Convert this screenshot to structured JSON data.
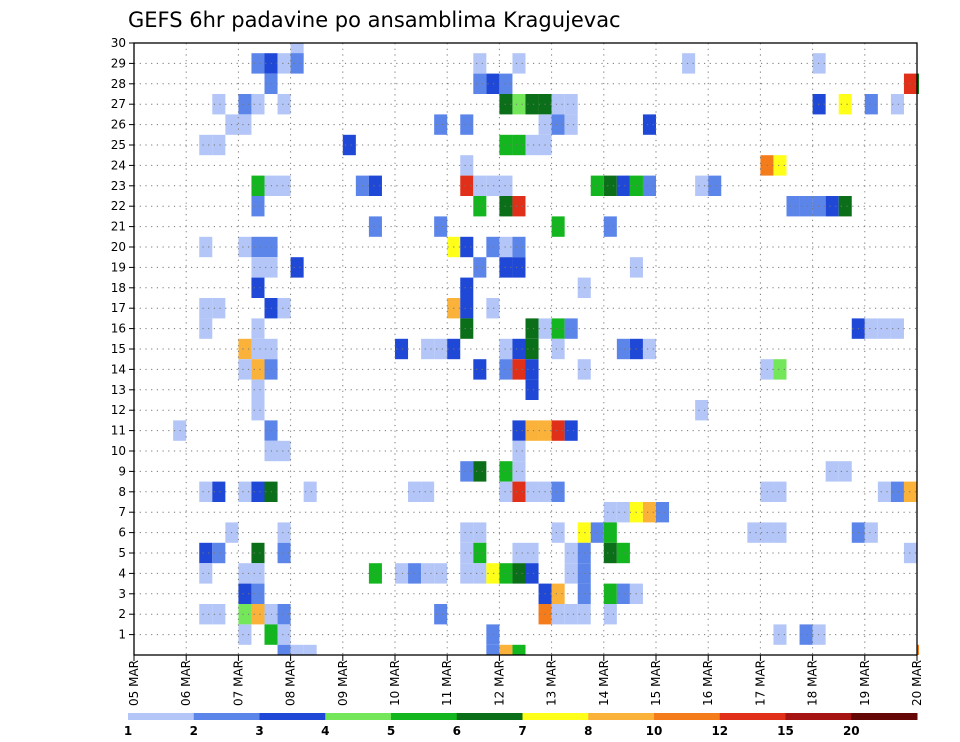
{
  "chart_data": {
    "type": "heatmap",
    "title": "GEFS 6hr padavine po ansamblima Kragujevac",
    "x_ticks": [
      "05 MAR",
      "06 MAR",
      "07 MAR",
      "08 MAR",
      "09 MAR",
      "10 MAR",
      "11 MAR",
      "12 MAR",
      "13 MAR",
      "14 MAR",
      "15 MAR",
      "16 MAR",
      "17 MAR",
      "18 MAR",
      "19 MAR",
      "20 MAR"
    ],
    "x_steps_per_day": 4,
    "x_range_steps": [
      0,
      60
    ],
    "y_ticks": [
      1,
      2,
      3,
      4,
      5,
      6,
      7,
      8,
      9,
      10,
      11,
      12,
      13,
      14,
      15,
      16,
      17,
      18,
      19,
      20,
      21,
      22,
      23,
      24,
      25,
      26,
      27,
      28,
      29,
      30
    ],
    "y_range": [
      0,
      30
    ],
    "grid": true,
    "colorbar": {
      "position": "bottom",
      "labels": [
        "1",
        "2",
        "3",
        "4",
        "5",
        "6",
        "7",
        "8",
        "10",
        "12",
        "15",
        "20"
      ],
      "colors": [
        "#b3c6f7",
        "#5c85ea",
        "#1f48d6",
        "#73e65a",
        "#13b61e",
        "#0b6e18",
        "#ffff1a",
        "#fbb23a",
        "#f57c1a",
        "#e0301a",
        "#a51313",
        "#650707"
      ]
    },
    "cell_encoding": "[time_step, member, color_class] where color_class indexes colorbar.colors",
    "cells": [
      [
        12,
        30,
        0
      ],
      [
        9,
        29,
        1
      ],
      [
        10,
        29,
        2
      ],
      [
        11,
        29,
        0
      ],
      [
        12,
        29,
        1
      ],
      [
        26,
        29,
        0
      ],
      [
        29,
        29,
        0
      ],
      [
        42,
        29,
        0
      ],
      [
        52,
        29,
        0
      ],
      [
        10,
        28,
        1
      ],
      [
        26,
        28,
        1
      ],
      [
        27,
        28,
        2
      ],
      [
        28,
        28,
        1
      ],
      [
        59,
        28,
        9
      ],
      [
        60,
        28,
        5
      ],
      [
        6,
        27,
        0
      ],
      [
        8,
        27,
        1
      ],
      [
        9,
        27,
        0
      ],
      [
        11,
        27,
        0
      ],
      [
        28,
        27,
        5
      ],
      [
        29,
        27,
        3
      ],
      [
        30,
        27,
        5
      ],
      [
        31,
        27,
        5
      ],
      [
        32,
        27,
        0
      ],
      [
        33,
        27,
        0
      ],
      [
        52,
        27,
        2
      ],
      [
        54,
        27,
        6
      ],
      [
        56,
        27,
        1
      ],
      [
        58,
        27,
        0
      ],
      [
        7,
        26,
        0
      ],
      [
        8,
        26,
        0
      ],
      [
        23,
        26,
        1
      ],
      [
        25,
        26,
        1
      ],
      [
        31,
        26,
        0
      ],
      [
        32,
        26,
        1
      ],
      [
        33,
        26,
        0
      ],
      [
        39,
        26,
        2
      ],
      [
        5,
        25,
        0
      ],
      [
        6,
        25,
        0
      ],
      [
        16,
        25,
        2
      ],
      [
        28,
        25,
        4
      ],
      [
        29,
        25,
        4
      ],
      [
        30,
        25,
        0
      ],
      [
        31,
        25,
        0
      ],
      [
        25,
        24,
        0
      ],
      [
        48,
        24,
        8
      ],
      [
        49,
        24,
        6
      ],
      [
        9,
        23,
        4
      ],
      [
        10,
        23,
        0
      ],
      [
        11,
        23,
        0
      ],
      [
        17,
        23,
        1
      ],
      [
        18,
        23,
        2
      ],
      [
        25,
        23,
        9
      ],
      [
        26,
        23,
        0
      ],
      [
        27,
        23,
        0
      ],
      [
        28,
        23,
        0
      ],
      [
        35,
        23,
        4
      ],
      [
        36,
        23,
        5
      ],
      [
        37,
        23,
        2
      ],
      [
        38,
        23,
        4
      ],
      [
        39,
        23,
        1
      ],
      [
        43,
        23,
        0
      ],
      [
        44,
        23,
        1
      ],
      [
        9,
        22,
        1
      ],
      [
        26,
        22,
        4
      ],
      [
        28,
        22,
        5
      ],
      [
        29,
        22,
        9
      ],
      [
        50,
        22,
        1
      ],
      [
        51,
        22,
        1
      ],
      [
        52,
        22,
        1
      ],
      [
        53,
        22,
        2
      ],
      [
        54,
        22,
        5
      ],
      [
        18,
        21,
        1
      ],
      [
        23,
        21,
        1
      ],
      [
        32,
        21,
        4
      ],
      [
        36,
        21,
        1
      ],
      [
        5,
        20,
        0
      ],
      [
        8,
        20,
        0
      ],
      [
        9,
        20,
        1
      ],
      [
        10,
        20,
        1
      ],
      [
        24,
        20,
        6
      ],
      [
        25,
        20,
        2
      ],
      [
        27,
        20,
        1
      ],
      [
        28,
        20,
        0
      ],
      [
        29,
        20,
        1
      ],
      [
        9,
        19,
        0
      ],
      [
        10,
        19,
        0
      ],
      [
        12,
        19,
        2
      ],
      [
        26,
        19,
        1
      ],
      [
        28,
        19,
        2
      ],
      [
        29,
        19,
        2
      ],
      [
        38,
        19,
        0
      ],
      [
        9,
        18,
        2
      ],
      [
        25,
        18,
        2
      ],
      [
        34,
        18,
        0
      ],
      [
        5,
        17,
        0
      ],
      [
        6,
        17,
        0
      ],
      [
        10,
        17,
        2
      ],
      [
        11,
        17,
        0
      ],
      [
        24,
        17,
        7
      ],
      [
        25,
        17,
        2
      ],
      [
        27,
        17,
        0
      ],
      [
        5,
        16,
        0
      ],
      [
        9,
        16,
        0
      ],
      [
        25,
        16,
        5
      ],
      [
        30,
        16,
        5
      ],
      [
        31,
        16,
        0
      ],
      [
        32,
        16,
        4
      ],
      [
        33,
        16,
        1
      ],
      [
        55,
        16,
        2
      ],
      [
        56,
        16,
        0
      ],
      [
        57,
        16,
        0
      ],
      [
        58,
        16,
        0
      ],
      [
        8,
        15,
        7
      ],
      [
        9,
        15,
        0
      ],
      [
        10,
        15,
        0
      ],
      [
        20,
        15,
        2
      ],
      [
        22,
        15,
        0
      ],
      [
        23,
        15,
        0
      ],
      [
        24,
        15,
        2
      ],
      [
        28,
        15,
        0
      ],
      [
        29,
        15,
        2
      ],
      [
        30,
        15,
        5
      ],
      [
        32,
        15,
        0
      ],
      [
        37,
        15,
        1
      ],
      [
        38,
        15,
        2
      ],
      [
        39,
        15,
        0
      ],
      [
        8,
        14,
        0
      ],
      [
        9,
        14,
        7
      ],
      [
        10,
        14,
        1
      ],
      [
        26,
        14,
        2
      ],
      [
        28,
        14,
        1
      ],
      [
        29,
        14,
        9
      ],
      [
        30,
        14,
        2
      ],
      [
        34,
        14,
        0
      ],
      [
        48,
        14,
        0
      ],
      [
        49,
        14,
        3
      ],
      [
        9,
        13,
        0
      ],
      [
        30,
        13,
        2
      ],
      [
        9,
        12,
        0
      ],
      [
        43,
        12,
        0
      ],
      [
        3,
        11,
        0
      ],
      [
        10,
        11,
        1
      ],
      [
        29,
        11,
        2
      ],
      [
        30,
        11,
        7
      ],
      [
        31,
        11,
        7
      ],
      [
        32,
        11,
        9
      ],
      [
        33,
        11,
        2
      ],
      [
        10,
        10,
        0
      ],
      [
        11,
        10,
        0
      ],
      [
        29,
        10,
        0
      ],
      [
        25,
        9,
        1
      ],
      [
        26,
        9,
        5
      ],
      [
        28,
        9,
        4
      ],
      [
        29,
        9,
        0
      ],
      [
        53,
        9,
        0
      ],
      [
        54,
        9,
        0
      ],
      [
        5,
        8,
        0
      ],
      [
        6,
        8,
        2
      ],
      [
        8,
        8,
        0
      ],
      [
        9,
        8,
        2
      ],
      [
        10,
        8,
        5
      ],
      [
        13,
        8,
        0
      ],
      [
        21,
        8,
        0
      ],
      [
        22,
        8,
        0
      ],
      [
        28,
        8,
        0
      ],
      [
        29,
        8,
        9
      ],
      [
        30,
        8,
        0
      ],
      [
        31,
        8,
        0
      ],
      [
        32,
        8,
        1
      ],
      [
        48,
        8,
        0
      ],
      [
        49,
        8,
        0
      ],
      [
        57,
        8,
        0
      ],
      [
        58,
        8,
        1
      ],
      [
        59,
        8,
        7
      ],
      [
        36,
        7,
        0
      ],
      [
        37,
        7,
        0
      ],
      [
        38,
        7,
        6
      ],
      [
        39,
        7,
        7
      ],
      [
        40,
        7,
        1
      ],
      [
        7,
        6,
        0
      ],
      [
        11,
        6,
        0
      ],
      [
        25,
        6,
        0
      ],
      [
        26,
        6,
        0
      ],
      [
        32,
        6,
        0
      ],
      [
        34,
        6,
        6
      ],
      [
        35,
        6,
        1
      ],
      [
        36,
        6,
        4
      ],
      [
        47,
        6,
        0
      ],
      [
        48,
        6,
        0
      ],
      [
        49,
        6,
        0
      ],
      [
        55,
        6,
        1
      ],
      [
        56,
        6,
        0
      ],
      [
        5,
        5,
        2
      ],
      [
        6,
        5,
        1
      ],
      [
        9,
        5,
        5
      ],
      [
        11,
        5,
        1
      ],
      [
        25,
        5,
        0
      ],
      [
        26,
        5,
        4
      ],
      [
        29,
        5,
        0
      ],
      [
        30,
        5,
        0
      ],
      [
        33,
        5,
        0
      ],
      [
        34,
        5,
        1
      ],
      [
        36,
        5,
        5
      ],
      [
        37,
        5,
        4
      ],
      [
        59,
        5,
        0
      ],
      [
        5,
        4,
        0
      ],
      [
        8,
        4,
        0
      ],
      [
        9,
        4,
        0
      ],
      [
        18,
        4,
        4
      ],
      [
        20,
        4,
        0
      ],
      [
        21,
        4,
        1
      ],
      [
        22,
        4,
        0
      ],
      [
        23,
        4,
        0
      ],
      [
        25,
        4,
        0
      ],
      [
        26,
        4,
        0
      ],
      [
        27,
        4,
        6
      ],
      [
        28,
        4,
        4
      ],
      [
        29,
        4,
        5
      ],
      [
        30,
        4,
        2
      ],
      [
        33,
        4,
        0
      ],
      [
        34,
        4,
        1
      ],
      [
        8,
        3,
        2
      ],
      [
        9,
        3,
        1
      ],
      [
        31,
        3,
        2
      ],
      [
        32,
        3,
        7
      ],
      [
        34,
        3,
        1
      ],
      [
        36,
        3,
        4
      ],
      [
        37,
        3,
        1
      ],
      [
        38,
        3,
        0
      ],
      [
        5,
        2,
        0
      ],
      [
        6,
        2,
        0
      ],
      [
        8,
        2,
        3
      ],
      [
        9,
        2,
        7
      ],
      [
        10,
        2,
        0
      ],
      [
        11,
        2,
        1
      ],
      [
        23,
        2,
        1
      ],
      [
        31,
        2,
        8
      ],
      [
        32,
        2,
        0
      ],
      [
        33,
        2,
        0
      ],
      [
        34,
        2,
        0
      ],
      [
        36,
        2,
        0
      ],
      [
        8,
        1,
        0
      ],
      [
        10,
        1,
        4
      ],
      [
        11,
        1,
        0
      ],
      [
        27,
        1,
        1
      ],
      [
        49,
        1,
        0
      ],
      [
        51,
        1,
        1
      ],
      [
        52,
        1,
        0
      ],
      [
        11,
        0,
        1
      ],
      [
        12,
        0,
        0
      ],
      [
        13,
        0,
        0
      ],
      [
        27,
        0,
        1
      ],
      [
        28,
        0,
        7
      ],
      [
        29,
        0,
        4
      ],
      [
        60,
        0,
        8
      ]
    ]
  }
}
